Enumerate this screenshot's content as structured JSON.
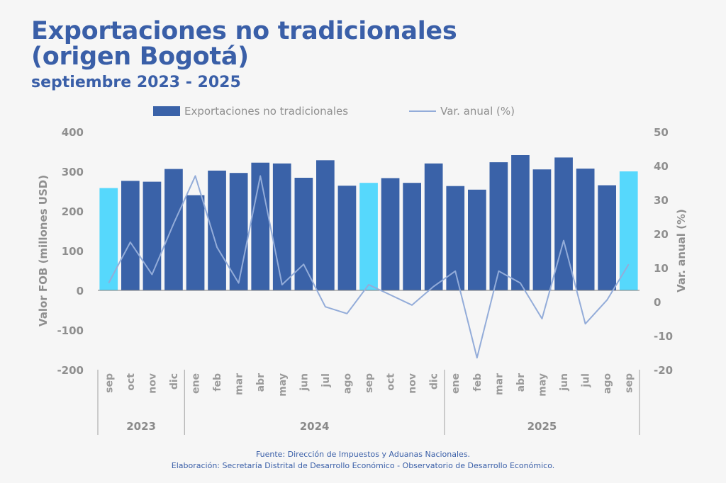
{
  "title_line1": "Exportaciones no tradicionales",
  "title_line2": "(origen Bogotá)",
  "subtitle": "septiembre 2023 - 2025",
  "legend": {
    "bars_label": "Exportaciones no tradicionales",
    "line_label": "Var. anual (%)"
  },
  "footer": {
    "source": "Fuente: Dirección de Impuestos y Aduanas Nacionales.",
    "elaboration": "Elaboración: Secretaría Distrital de Desarrollo Económico - Observatorio de Desarrollo Económico."
  },
  "colors": {
    "bar": "#3a62a8",
    "bar_highlight": "#56d8fc",
    "line": "#93acd9",
    "title": "#3a5fa8",
    "axis_text": "#8f8f8f"
  },
  "chart_data": {
    "type": "bar",
    "ylabel": "Valor FOB (millones USD)",
    "y2label": "Var. anual (%)",
    "ylim": [
      -200,
      400
    ],
    "y2lim": [
      -20,
      50
    ],
    "yticks": [
      "400",
      "300",
      "200",
      "100",
      "0",
      "-100",
      "-200"
    ],
    "y2ticks": [
      "50",
      "40",
      "30",
      "20",
      "10",
      "0",
      "-10",
      "-20"
    ],
    "categories": [
      "sep",
      "oct",
      "nov",
      "dic",
      "ene",
      "feb",
      "mar",
      "abr",
      "may",
      "jun",
      "jul",
      "ago",
      "sep",
      "oct",
      "nov",
      "dic",
      "ene",
      "feb",
      "mar",
      "abr",
      "may",
      "jun",
      "jul",
      "ago",
      "sep"
    ],
    "years": [
      {
        "label": "2023",
        "start": 0,
        "end": 3
      },
      {
        "label": "2024",
        "start": 4,
        "end": 15
      },
      {
        "label": "2025",
        "start": 16,
        "end": 24
      }
    ],
    "series": [
      {
        "name": "Exportaciones no tradicionales",
        "type": "bar",
        "axis": "left",
        "values": [
          258,
          276,
          274,
          306,
          240,
          302,
          296,
          322,
          320,
          284,
          328,
          264,
          271,
          283,
          271,
          320,
          263,
          254,
          323,
          341,
          305,
          335,
          307,
          265,
          300
        ],
        "highlight_indices": [
          0,
          12,
          24
        ]
      },
      {
        "name": "Var. anual (%)",
        "type": "line",
        "axis": "right",
        "values": [
          5.5,
          17.5,
          8,
          23,
          37,
          16,
          5.5,
          37,
          5,
          11,
          -1.5,
          -3.5,
          5,
          2,
          -1,
          4.5,
          9,
          -16.5,
          9,
          5.5,
          -5,
          18,
          -6.5,
          0.5,
          11
        ]
      }
    ],
    "grid": false,
    "legend_position": "top"
  }
}
